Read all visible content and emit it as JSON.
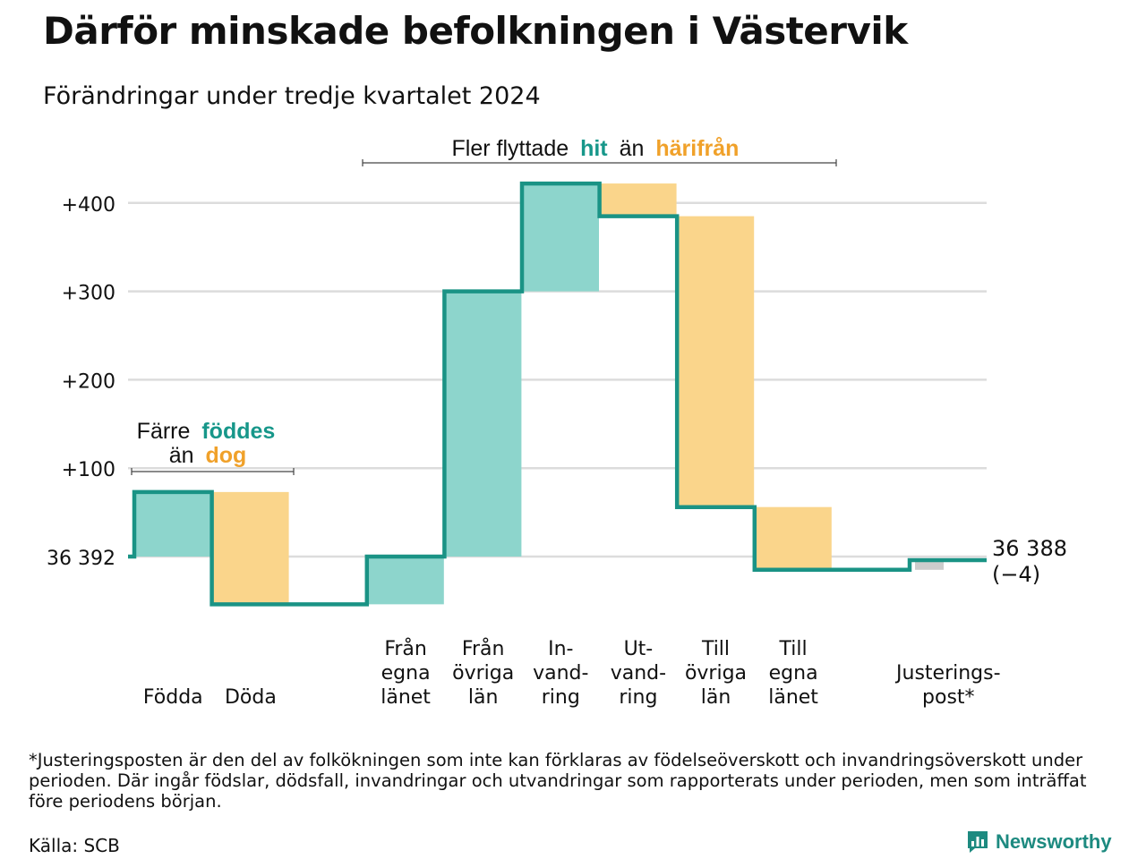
{
  "title": "Därför minskade befolkningen i Västervik",
  "subtitle": "Förändringar under tredje kvartalet 2024",
  "colors": {
    "increase": "#8dd5cc",
    "decrease": "#fad58b",
    "adjustment": "#cccccc",
    "line": "#1a9385",
    "grid": "#dcdcdc",
    "accent_teal": "#17978a",
    "accent_orange": "#f0a12a"
  },
  "annotations": {
    "births_group": {
      "prefix": "Färre",
      "highlight_teal": "föddes",
      "word": "än",
      "highlight_orange": "dog"
    },
    "migration_group": {
      "prefix": "Fler flyttade",
      "highlight_teal": "hit",
      "word": "än",
      "highlight_orange": "härifrån"
    }
  },
  "end_label": {
    "value": "36 388",
    "change": "(−4)"
  },
  "footnote": "*Justeringsposten är den del av folkökningen som inte kan förklaras av födelseöverskott och invandringsöverskott under perioden. Där ingår födslar, dödsfall, invandringar och utvandringar som rapporterats under perioden, men som inträffat före periodens början.",
  "source": "Källa: SCB",
  "brand": {
    "name": "Newsworthy",
    "icon": "newsworthy-logo-icon"
  },
  "chart_data": {
    "type": "waterfall",
    "start_value": 36392,
    "start_label": "36 392",
    "yticks": [
      {
        "value": 100,
        "label": "+100"
      },
      {
        "value": 200,
        "label": "+200"
      },
      {
        "value": 300,
        "label": "+300"
      },
      {
        "value": 400,
        "label": "+400"
      }
    ],
    "ylim": [
      -80,
      420
    ],
    "grid": true,
    "categories": [
      {
        "label": [
          "Födda"
        ],
        "change": 73,
        "kind": "increase"
      },
      {
        "label": [
          "Döda"
        ],
        "change": -127,
        "kind": "decrease"
      },
      {
        "label": [],
        "change": 0,
        "kind": "none"
      },
      {
        "label": [
          "Från",
          "egna",
          "länet"
        ],
        "change": 54,
        "kind": "increase"
      },
      {
        "label": [
          "Från",
          "övriga",
          "län"
        ],
        "change": 300,
        "kind": "increase"
      },
      {
        "label": [
          "In-",
          "vand-",
          "ring"
        ],
        "change": 122,
        "kind": "increase"
      },
      {
        "label": [
          "Ut-",
          "vand-",
          "ring"
        ],
        "change": -37,
        "kind": "decrease"
      },
      {
        "label": [
          "Till",
          "övriga",
          "län"
        ],
        "change": -329,
        "kind": "decrease"
      },
      {
        "label": [
          "Till",
          "egna",
          "länet"
        ],
        "change": -71,
        "kind": "decrease"
      },
      {
        "label": [],
        "change": 0,
        "kind": "none"
      },
      {
        "label": [
          "Justerings-",
          "post*"
        ],
        "change": 11,
        "kind": "adjustment"
      }
    ],
    "end_value": 36388,
    "net_change": -4
  }
}
